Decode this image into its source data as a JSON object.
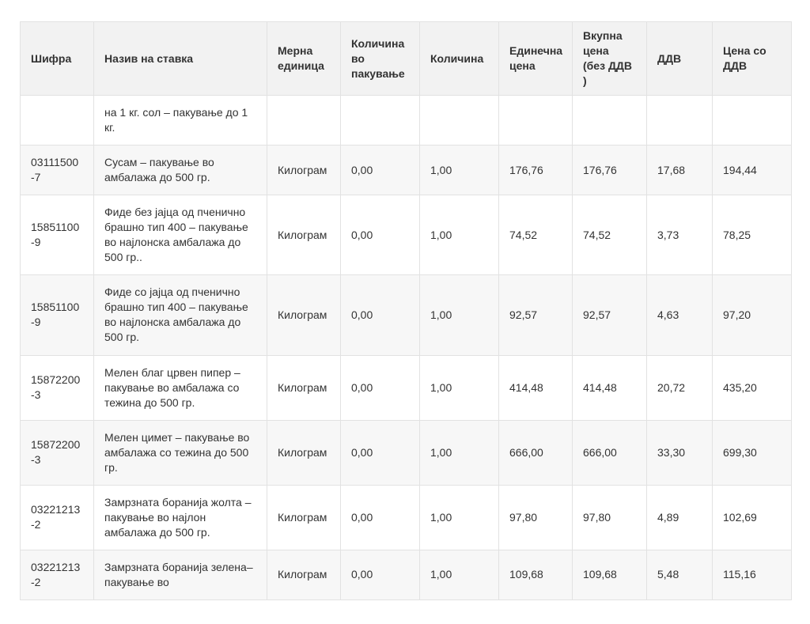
{
  "colors": {
    "border": "#e2e2e2",
    "header_bg": "#f2f2f2",
    "stripe": "#f7f7f7",
    "text": "#333333",
    "page_bg": "#ffffff"
  },
  "table": {
    "columns": [
      {
        "key": "code",
        "label": "Шифра"
      },
      {
        "key": "name",
        "label": "Назив на ставка"
      },
      {
        "key": "unit",
        "label": "Мерна единица"
      },
      {
        "key": "qty_per_pack",
        "label": "Количина\nво\nпакување"
      },
      {
        "key": "qty",
        "label": "Количина"
      },
      {
        "key": "unit_price",
        "label": "Единечна цена"
      },
      {
        "key": "total_no_vat",
        "label": "Вкупна\nцена\n(без ДДВ\n)"
      },
      {
        "key": "vat",
        "label": "ДДВ"
      },
      {
        "key": "price_with_vat",
        "label": "Цена со ДДВ"
      }
    ],
    "rows": [
      [
        "",
        "на 1 кг. сол – пакување до 1 кг.",
        "",
        "",
        "",
        "",
        "",
        "",
        ""
      ],
      [
        "03111500\n-7",
        "Сусам – пакување во амбалажа до 500 гр.",
        "Килограм",
        "0,00",
        "1,00",
        "176,76",
        "176,76",
        "17,68",
        "194,44"
      ],
      [
        "15851100\n-9",
        "Фиде без јајца од пченично брашно тип 400 – пакување во најлонска амбалажа до 500 гр..",
        "Килограм",
        "0,00",
        "1,00",
        "74,52",
        "74,52",
        "3,73",
        "78,25"
      ],
      [
        "15851100\n-9",
        "Фиде со јајца од пченично брашно тип 400 – пакување во најлонска амбалажа до 500 гр.",
        "Килограм",
        "0,00",
        "1,00",
        "92,57",
        "92,57",
        "4,63",
        "97,20"
      ],
      [
        "15872200\n-3",
        "Мелен благ црвен пипер – пакување во амбалажа со тежина до 500 гр.",
        "Килограм",
        "0,00",
        "1,00",
        "414,48",
        "414,48",
        "20,72",
        "435,20"
      ],
      [
        "15872200\n-3",
        "Мелен цимет – пакување во амбалажа со тежина до 500 гр.",
        "Килограм",
        "0,00",
        "1,00",
        "666,00",
        "666,00",
        "33,30",
        "699,30"
      ],
      [
        "03221213\n-2",
        "Замрзната боранија жолта – пакување во најлон амбалажа до 500 гр.",
        "Килограм",
        "0,00",
        "1,00",
        "97,80",
        "97,80",
        "4,89",
        "102,69"
      ],
      [
        "03221213\n-2",
        "Замрзната боранија зелена–пакување во",
        "Килограм",
        "0,00",
        "1,00",
        "109,68",
        "109,68",
        "5,48",
        "115,16"
      ]
    ]
  }
}
